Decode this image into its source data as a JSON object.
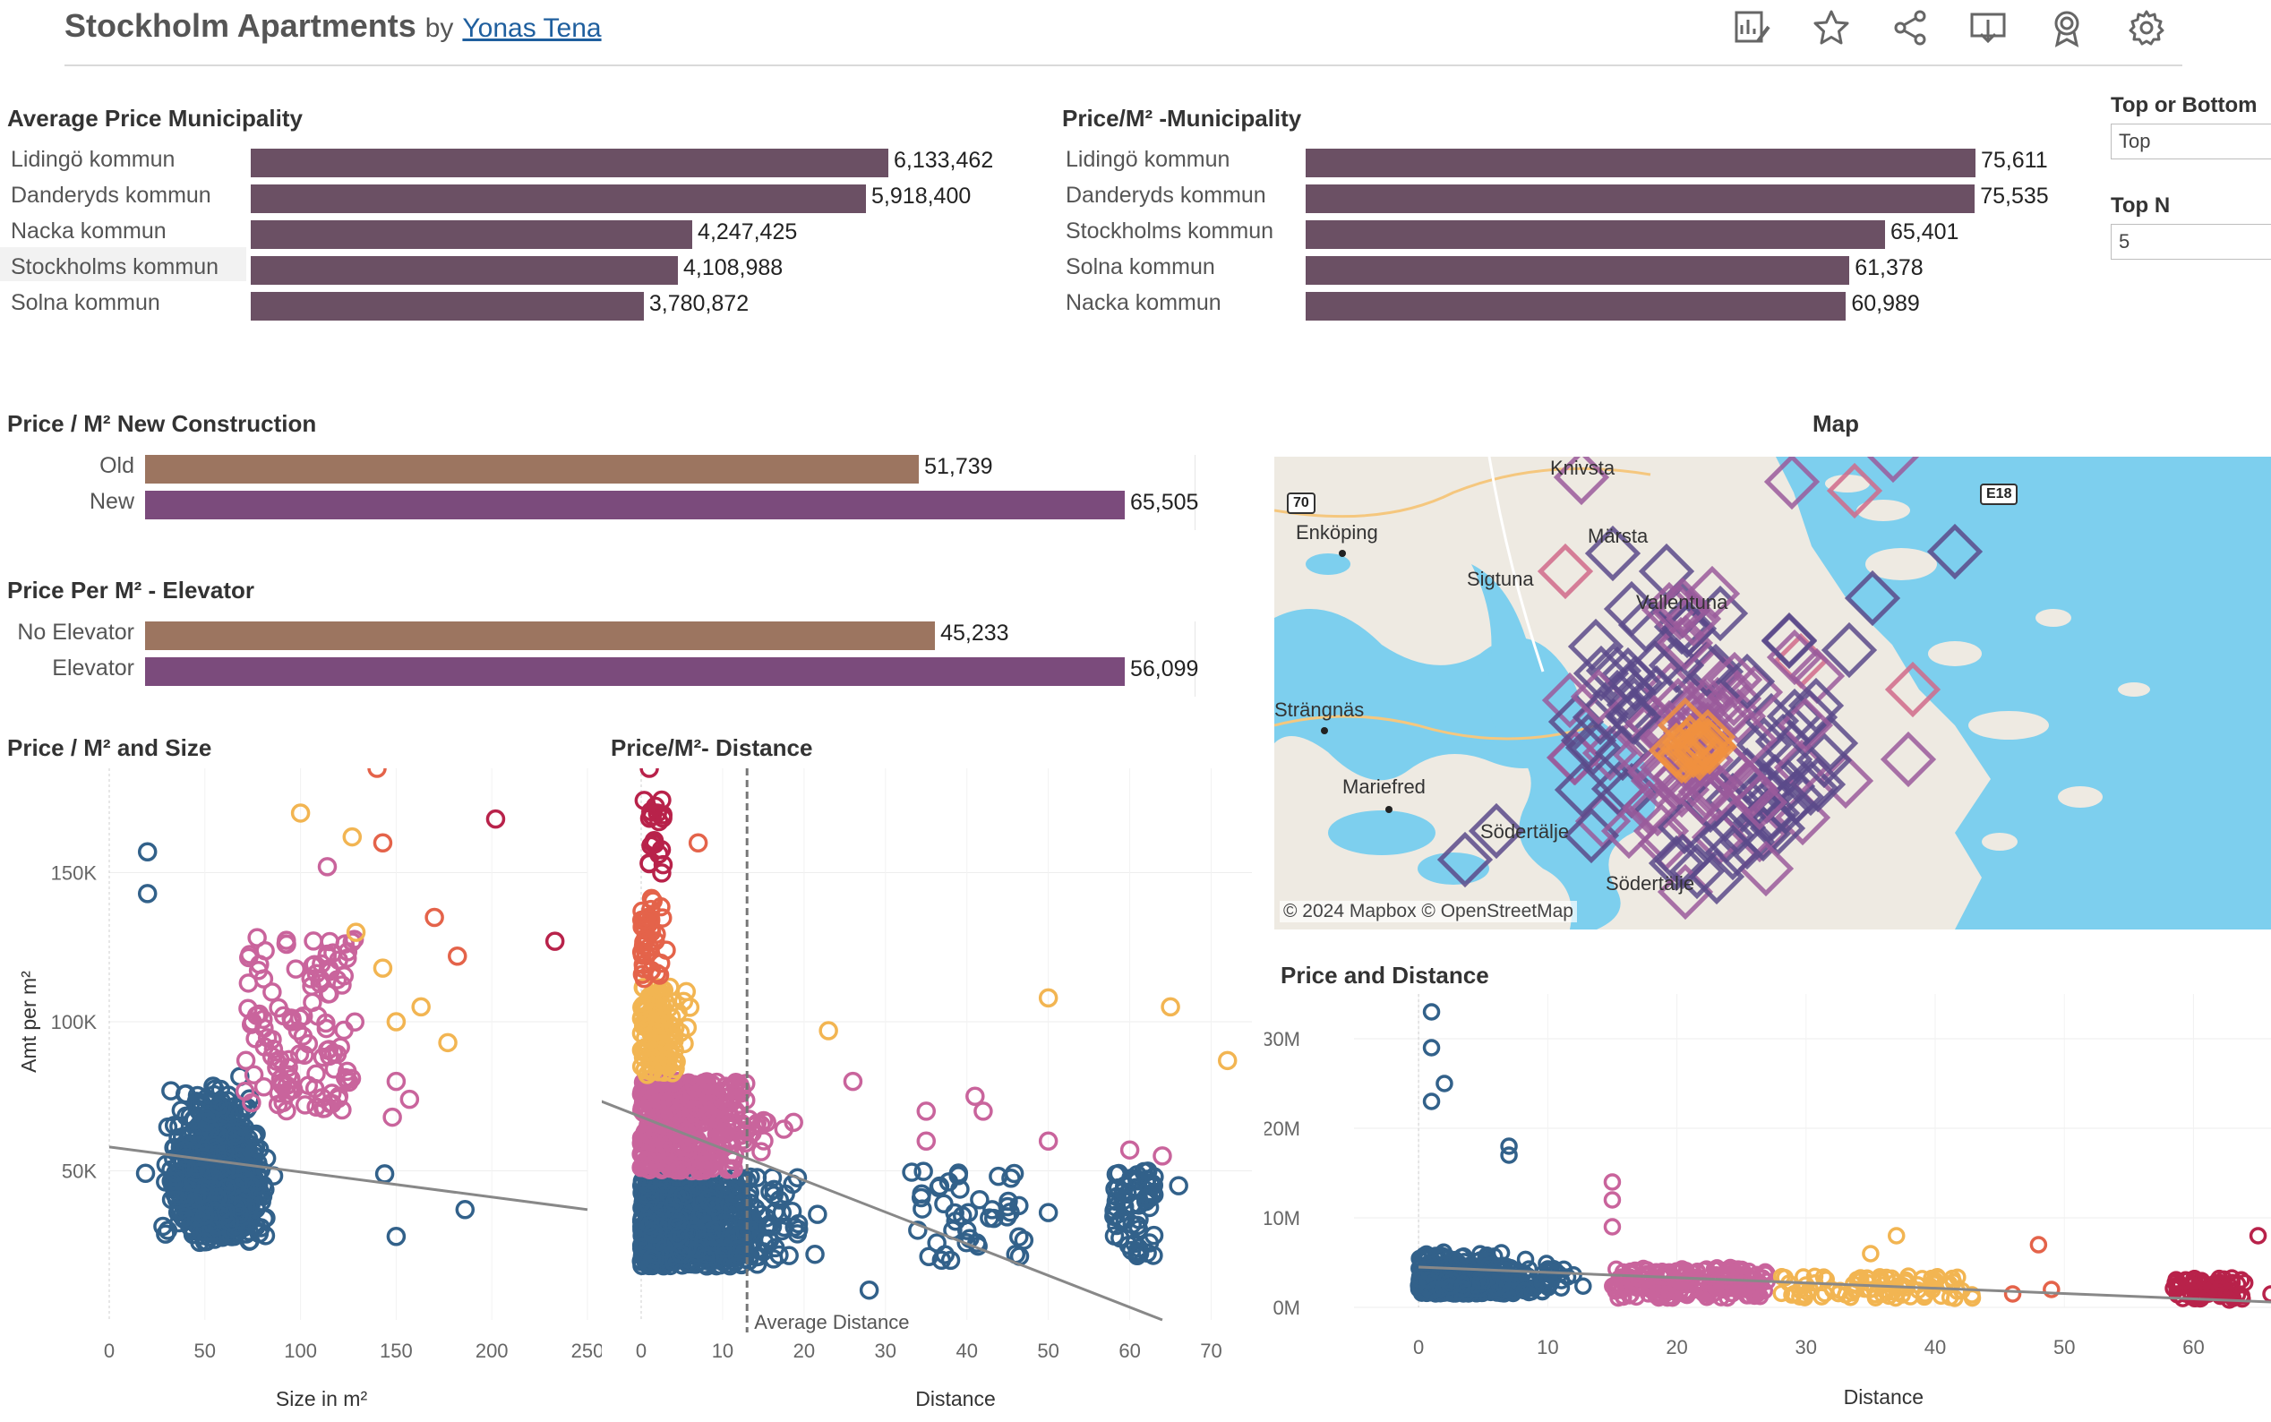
{
  "header": {
    "title": "Stockholm Apartments",
    "by": "by",
    "author": "Yonas Tena",
    "icons": [
      "pen-chart-icon",
      "star-icon",
      "share-icon",
      "download-icon",
      "badge-icon",
      "gear-icon"
    ]
  },
  "filters": {
    "top_bottom_label": "Top or Bottom",
    "top_bottom_value": "Top",
    "topn_label": "Top N",
    "topn_value": "5"
  },
  "avg_price": {
    "title": "Average Price Municipality",
    "rows": [
      {
        "label": "Lidingö kommun",
        "value": "6,133,462",
        "num": 6133462
      },
      {
        "label": "Danderyds kommun",
        "value": "5,918,400",
        "num": 5918400
      },
      {
        "label": "Nacka kommun",
        "value": "4,247,425",
        "num": 4247425
      },
      {
        "label": "Stockholms kommun",
        "value": "4,108,988",
        "num": 4108988
      },
      {
        "label": "Solna kommun",
        "value": "3,780,872",
        "num": 3780872
      }
    ]
  },
  "price_m2_muni": {
    "title": "Price/M² -Municipality",
    "rows": [
      {
        "label": "Lidingö kommun",
        "value": "75,611",
        "num": 75611
      },
      {
        "label": "Danderyds kommun",
        "value": "75,535",
        "num": 75535
      },
      {
        "label": "Stockholms kommun",
        "value": "65,401",
        "num": 65401
      },
      {
        "label": "Solna kommun",
        "value": "61,378",
        "num": 61378
      },
      {
        "label": "Nacka kommun",
        "value": "60,989",
        "num": 60989
      }
    ]
  },
  "new_construction": {
    "title": "Price / M² New Construction",
    "rows": [
      {
        "label": "Old",
        "value": "51,739",
        "num": 51739
      },
      {
        "label": "New",
        "value": "65,505",
        "num": 65505
      }
    ]
  },
  "elevator": {
    "title": "Price Per M² - Elevator",
    "rows": [
      {
        "label": "No Elevator",
        "value": "45,233",
        "num": 45233
      },
      {
        "label": "Elevator",
        "value": "56,099",
        "num": 56099
      }
    ]
  },
  "map": {
    "title": "Map",
    "places": [
      "Knivsta",
      "Enköping",
      "Märsta",
      "Sigtuna",
      "Vallentuna",
      "Strängnäs",
      "Mariefred",
      "Södertälje",
      "Södertälje"
    ],
    "roads": [
      "70",
      "E18"
    ],
    "attribution": "© 2024 Mapbox  © OpenStreetMap",
    "colors": {
      "water": "#7dcfee",
      "land": "#eeeae2",
      "marker_dark": "#5a4a8a",
      "marker_mid": "#9a5b9b",
      "marker_pink": "#d06a8a",
      "marker_orange": "#f09040"
    }
  },
  "colors": {
    "bar_primary": "#6b5064",
    "bar_old": "#9c7560",
    "bar_new": "#7b4b7c",
    "blue": "#32618a",
    "pink": "#c9649c",
    "yellow": "#f2b552",
    "orange": "#e4634a",
    "red": "#b8224a",
    "trend": "#888888"
  },
  "chart_data": [
    {
      "type": "scatter",
      "title": "Price / M² and Size",
      "xlabel": "Size in m²",
      "ylabel": "Amt per m²",
      "xticks": [
        "0",
        "50",
        "100",
        "150",
        "200",
        "250"
      ],
      "yticks": [
        "50K",
        "100K",
        "150K"
      ],
      "xlim": [
        0,
        250
      ],
      "ylim": [
        0,
        185000
      ],
      "points": [
        [
          140,
          185000,
          "orange"
        ],
        [
          202,
          168000,
          "red"
        ],
        [
          100,
          170000,
          "yellow"
        ],
        [
          20,
          157000,
          "blue"
        ],
        [
          143,
          160000,
          "orange"
        ],
        [
          114,
          152000,
          "pink"
        ],
        [
          127,
          162000,
          "yellow"
        ],
        [
          170,
          135000,
          "orange"
        ],
        [
          233,
          127000,
          "red"
        ],
        [
          182,
          122000,
          "orange"
        ],
        [
          20,
          143000,
          "blue"
        ],
        [
          129,
          130000,
          "yellow"
        ],
        [
          143,
          118000,
          "yellow"
        ],
        [
          163,
          105000,
          "yellow"
        ],
        [
          150,
          100000,
          "yellow"
        ],
        [
          177,
          93000,
          "yellow"
        ],
        [
          150,
          80000,
          "pink"
        ],
        [
          157,
          74000,
          "pink"
        ],
        [
          148,
          68000,
          "pink"
        ],
        [
          120,
          75000,
          "pink"
        ],
        [
          144,
          49000,
          "blue"
        ],
        [
          186,
          37000,
          "blue"
        ],
        [
          150,
          28000,
          "blue"
        ]
      ],
      "trend": [
        [
          0,
          58000
        ],
        [
          250,
          37000
        ]
      ]
    },
    {
      "type": "scatter",
      "title": "Price/M²- Distance",
      "xlabel": "Distance",
      "xticks": [
        "0",
        "10",
        "20",
        "30",
        "40",
        "50",
        "60",
        "70"
      ],
      "xlim": [
        0,
        75
      ],
      "ylim": [
        0,
        185000
      ],
      "annotation": "Average Distance",
      "avg_distance": 13,
      "points": [
        [
          1,
          185000,
          "red"
        ],
        [
          2,
          170000,
          "red"
        ],
        [
          7,
          160000,
          "orange"
        ],
        [
          1,
          153000,
          "red"
        ],
        [
          50,
          108000,
          "yellow"
        ],
        [
          65,
          105000,
          "yellow"
        ],
        [
          72,
          87000,
          "yellow"
        ],
        [
          23,
          97000,
          "yellow"
        ],
        [
          26,
          80000,
          "pink"
        ],
        [
          35,
          70000,
          "pink"
        ],
        [
          41,
          75000,
          "pink"
        ],
        [
          42,
          70000,
          "pink"
        ],
        [
          50,
          60000,
          "pink"
        ],
        [
          60,
          57000,
          "pink"
        ],
        [
          64,
          55000,
          "pink"
        ],
        [
          35,
          60000,
          "pink"
        ],
        [
          45,
          38000,
          "blue"
        ],
        [
          50,
          36000,
          "blue"
        ],
        [
          63,
          48000,
          "blue"
        ],
        [
          66,
          45000,
          "blue"
        ],
        [
          40,
          30000,
          "blue"
        ],
        [
          46,
          22000,
          "blue"
        ],
        [
          28,
          10000,
          "blue"
        ],
        [
          38,
          20000,
          "blue"
        ]
      ],
      "trend": [
        [
          0,
          72000
        ],
        [
          64,
          0
        ]
      ]
    },
    {
      "type": "scatter",
      "title": "Price and Distance",
      "xlabel": "Distance",
      "xticks": [
        "0",
        "10",
        "20",
        "30",
        "40",
        "50",
        "60"
      ],
      "yticks": [
        "0M",
        "10M",
        "20M",
        "30M"
      ],
      "xlim": [
        -5,
        66
      ],
      "ylim": [
        0,
        35000000
      ],
      "points": [
        [
          1,
          33000000,
          "blue"
        ],
        [
          1,
          29000000,
          "blue"
        ],
        [
          2,
          25000000,
          "blue"
        ],
        [
          1,
          23000000,
          "blue"
        ],
        [
          7,
          18000000,
          "blue"
        ],
        [
          7,
          17000000,
          "blue"
        ],
        [
          15,
          14000000,
          "pink"
        ],
        [
          15,
          12000000,
          "pink"
        ],
        [
          15,
          9000000,
          "pink"
        ],
        [
          37,
          8000000,
          "yellow"
        ],
        [
          35,
          6000000,
          "yellow"
        ],
        [
          48,
          7000000,
          "orange"
        ],
        [
          49,
          2000000,
          "orange"
        ],
        [
          46,
          1500000,
          "orange"
        ],
        [
          65,
          8000000,
          "red"
        ],
        [
          66,
          1500000,
          "red"
        ],
        [
          60,
          3000000,
          "red"
        ],
        [
          62,
          2000000,
          "red"
        ],
        [
          40,
          3000000,
          "yellow"
        ],
        [
          30,
          2500000,
          "yellow"
        ]
      ],
      "trend": [
        [
          0,
          4500000
        ],
        [
          66,
          0
        ]
      ]
    }
  ]
}
